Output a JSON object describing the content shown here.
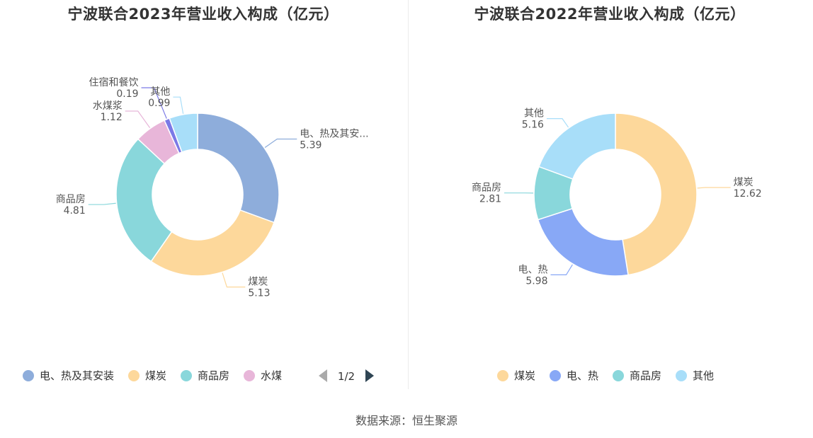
{
  "source_text": "数据来源：恒生聚源",
  "pager": {
    "text": "1/2",
    "prev_icon": "triangle-left-icon",
    "next_icon": "triangle-right-icon"
  },
  "chart_data": [
    {
      "type": "pie",
      "variant": "donut",
      "title": "宁波联合2023年营业收入构成（亿元）",
      "slices": [
        {
          "label": "电、热及其安...",
          "legend_label": "电、热及其安装",
          "value": 5.39,
          "value_text": "5.39",
          "color": "#8eaddb"
        },
        {
          "label": "煤炭",
          "legend_label": "煤炭",
          "value": 5.13,
          "value_text": "5.13",
          "color": "#fdd89b"
        },
        {
          "label": "商品房",
          "legend_label": "商品房",
          "value": 4.81,
          "value_text": "4.81",
          "color": "#89d7db"
        },
        {
          "label": "水煤浆",
          "legend_label": "水煤",
          "value": 1.12,
          "value_text": "1.12",
          "color": "#e8b6d9"
        },
        {
          "label": "住宿和餐饮",
          "legend_label": "",
          "value": 0.19,
          "value_text": "0.19",
          "color": "#7b79e6"
        },
        {
          "label": "其他",
          "legend_label": "",
          "value": 0.99,
          "value_text": "0.99",
          "color": "#a8def9"
        }
      ],
      "legend_position": "bottom",
      "legend_paged": true
    },
    {
      "type": "pie",
      "variant": "donut",
      "title": "宁波联合2022年营业收入构成（亿元）",
      "slices": [
        {
          "label": "煤炭",
          "legend_label": "煤炭",
          "value": 12.62,
          "value_text": "12.62",
          "color": "#fdd89b"
        },
        {
          "label": "电、热",
          "legend_label": "电、热",
          "value": 5.98,
          "value_text": "5.98",
          "color": "#88a8f6"
        },
        {
          "label": "商品房",
          "legend_label": "商品房",
          "value": 2.81,
          "value_text": "2.81",
          "color": "#89d7db"
        },
        {
          "label": "其他",
          "legend_label": "其他",
          "value": 5.16,
          "value_text": "5.16",
          "color": "#a8def9"
        }
      ],
      "legend_position": "bottom",
      "legend_paged": false
    }
  ]
}
